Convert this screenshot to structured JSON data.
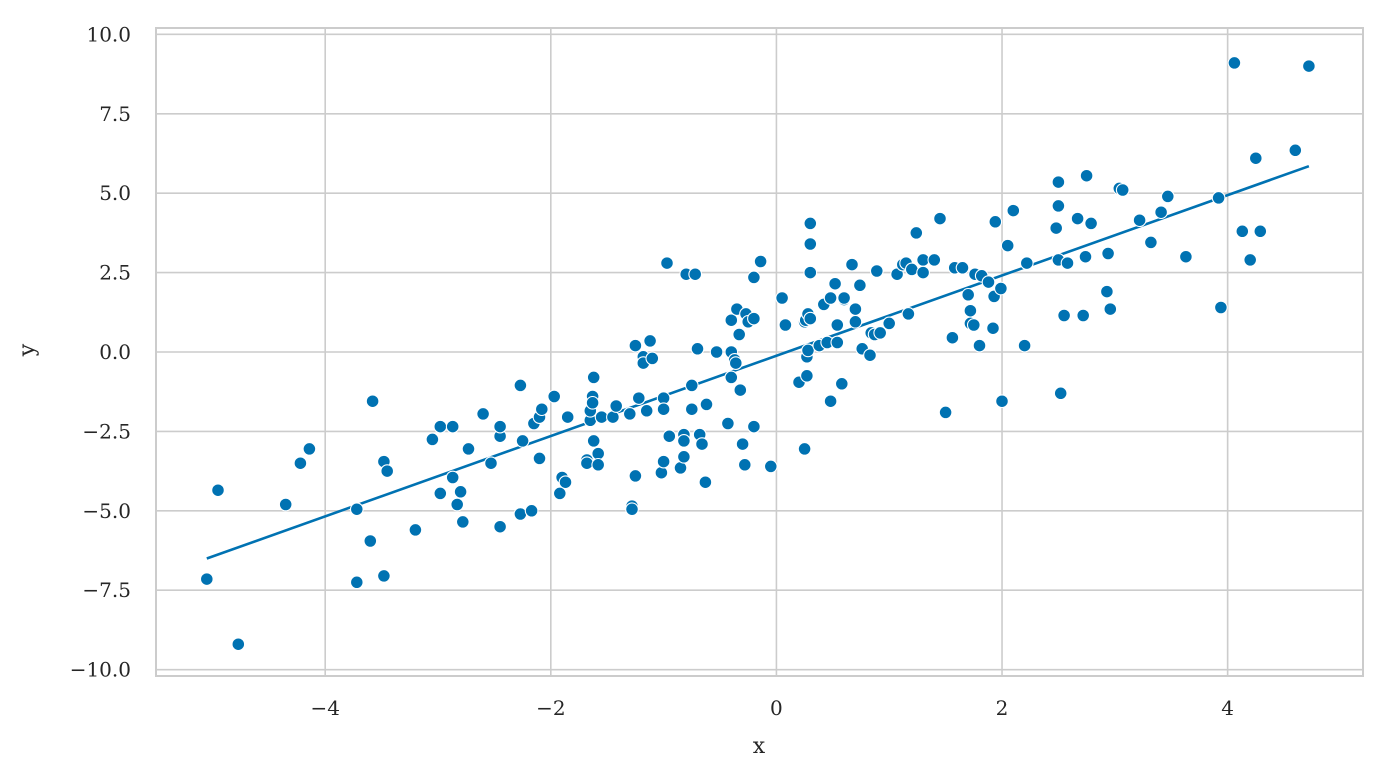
{
  "chart_data": {
    "type": "scatter",
    "title": "",
    "xlabel": "x",
    "ylabel": "y",
    "xlim": [
      -5.5,
      5.2
    ],
    "ylim": [
      -10.2,
      10.2
    ],
    "xticks": [
      -4,
      -2,
      0,
      2,
      4
    ],
    "yticks": [
      -10.0,
      -7.5,
      -5.0,
      -2.5,
      0.0,
      2.5,
      5.0,
      7.5,
      10.0
    ],
    "xtick_labels": [
      "−4",
      "−2",
      "0",
      "2",
      "4"
    ],
    "ytick_labels": [
      "−10.0",
      "−7.5",
      "−5.0",
      "−2.5",
      "0.0",
      "2.5",
      "5.0",
      "7.5",
      "10.0"
    ],
    "grid": true,
    "legend": "none",
    "colors": {
      "points": "#0072b2",
      "point_edge": "#ffffff",
      "fit_line": "#0072b2",
      "grid": "#cccccc",
      "spine": "#cccccc",
      "text": "#262626"
    },
    "series": [
      {
        "type": "scatter",
        "points": [
          [
            -5.05,
            -7.15
          ],
          [
            -4.95,
            -4.35
          ],
          [
            -4.77,
            -9.2
          ],
          [
            -4.35,
            -4.8
          ],
          [
            -4.22,
            -3.5
          ],
          [
            -4.14,
            -3.05
          ],
          [
            -3.72,
            -7.25
          ],
          [
            -3.72,
            -4.95
          ],
          [
            -3.6,
            -5.95
          ],
          [
            -3.58,
            -1.55
          ],
          [
            -3.48,
            -7.05
          ],
          [
            -3.48,
            -3.45
          ],
          [
            -3.45,
            -3.75
          ],
          [
            -3.2,
            -5.6
          ],
          [
            -3.05,
            -2.75
          ],
          [
            -2.98,
            -4.45
          ],
          [
            -2.98,
            -2.35
          ],
          [
            -2.87,
            -2.35
          ],
          [
            -2.87,
            -3.95
          ],
          [
            -2.83,
            -4.8
          ],
          [
            -2.8,
            -4.4
          ],
          [
            -2.78,
            -5.35
          ],
          [
            -2.73,
            -3.05
          ],
          [
            -2.6,
            -1.95
          ],
          [
            -2.53,
            -3.5
          ],
          [
            -2.45,
            -5.5
          ],
          [
            -2.45,
            -2.65
          ],
          [
            -2.45,
            -2.35
          ],
          [
            -2.27,
            -1.05
          ],
          [
            -2.27,
            -5.1
          ],
          [
            -2.25,
            -2.8
          ],
          [
            -2.17,
            -5.0
          ],
          [
            -2.15,
            -2.25
          ],
          [
            -2.1,
            -2.05
          ],
          [
            -2.1,
            -3.35
          ],
          [
            -2.08,
            -1.8
          ],
          [
            -1.97,
            -1.4
          ],
          [
            -1.92,
            -4.45
          ],
          [
            -1.9,
            -3.95
          ],
          [
            -1.87,
            -4.1
          ],
          [
            -1.85,
            -2.05
          ],
          [
            -1.68,
            -3.4
          ],
          [
            -1.68,
            -3.5
          ],
          [
            -1.65,
            -2.15
          ],
          [
            -1.65,
            -1.85
          ],
          [
            -1.63,
            -1.4
          ],
          [
            -1.63,
            -1.6
          ],
          [
            -1.62,
            -2.8
          ],
          [
            -1.62,
            -0.8
          ],
          [
            -1.58,
            -3.2
          ],
          [
            -1.58,
            -3.55
          ],
          [
            -1.55,
            -2.05
          ],
          [
            -1.45,
            -2.05
          ],
          [
            -1.42,
            -1.7
          ],
          [
            -1.3,
            -1.95
          ],
          [
            -1.28,
            -4.85
          ],
          [
            -1.28,
            -4.95
          ],
          [
            -1.25,
            0.2
          ],
          [
            -1.25,
            -3.9
          ],
          [
            -1.22,
            -1.45
          ],
          [
            -1.18,
            -0.15
          ],
          [
            -1.18,
            -0.35
          ],
          [
            -1.15,
            -1.85
          ],
          [
            -1.12,
            0.35
          ],
          [
            -1.1,
            -0.2
          ],
          [
            -1.02,
            -3.8
          ],
          [
            -1.0,
            -3.45
          ],
          [
            -1.0,
            -1.45
          ],
          [
            -1.0,
            -1.8
          ],
          [
            -0.97,
            2.8
          ],
          [
            -0.95,
            -2.65
          ],
          [
            -0.85,
            -3.65
          ],
          [
            -0.82,
            -3.3
          ],
          [
            -0.82,
            -2.6
          ],
          [
            -0.82,
            -2.8
          ],
          [
            -0.8,
            2.45
          ],
          [
            -0.75,
            -1.05
          ],
          [
            -0.75,
            -1.8
          ],
          [
            -0.72,
            2.45
          ],
          [
            -0.7,
            0.1
          ],
          [
            -0.68,
            -2.6
          ],
          [
            -0.66,
            -2.9
          ],
          [
            -0.63,
            -4.1
          ],
          [
            -0.62,
            -1.65
          ],
          [
            -0.53,
            0.0
          ],
          [
            -0.43,
            -2.25
          ],
          [
            -0.4,
            1.0
          ],
          [
            -0.4,
            0.0
          ],
          [
            -0.4,
            -0.8
          ],
          [
            -0.37,
            -0.25
          ],
          [
            -0.36,
            -0.35
          ],
          [
            -0.35,
            1.35
          ],
          [
            -0.33,
            0.55
          ],
          [
            -0.32,
            -1.2
          ],
          [
            -0.3,
            -2.9
          ],
          [
            -0.28,
            -3.55
          ],
          [
            -0.27,
            1.2
          ],
          [
            -0.25,
            0.95
          ],
          [
            -0.2,
            -2.35
          ],
          [
            -0.2,
            1.05
          ],
          [
            -0.2,
            2.35
          ],
          [
            -0.14,
            2.85
          ],
          [
            -0.05,
            -3.6
          ],
          [
            0.05,
            1.7
          ],
          [
            0.08,
            0.85
          ],
          [
            0.2,
            -0.95
          ],
          [
            0.25,
            -3.05
          ],
          [
            0.25,
            0.95
          ],
          [
            0.26,
            1.0
          ],
          [
            0.27,
            -0.15
          ],
          [
            0.27,
            -0.75
          ],
          [
            0.28,
            0.05
          ],
          [
            0.28,
            1.2
          ],
          [
            0.3,
            1.05
          ],
          [
            0.3,
            2.5
          ],
          [
            0.3,
            3.4
          ],
          [
            0.3,
            4.05
          ],
          [
            0.38,
            0.2
          ],
          [
            0.42,
            1.5
          ],
          [
            0.45,
            0.3
          ],
          [
            0.48,
            -1.55
          ],
          [
            0.48,
            1.7
          ],
          [
            0.52,
            2.15
          ],
          [
            0.54,
            0.3
          ],
          [
            0.54,
            0.85
          ],
          [
            0.58,
            -1.0
          ],
          [
            0.6,
            1.65
          ],
          [
            0.6,
            1.7
          ],
          [
            0.67,
            2.75
          ],
          [
            0.7,
            1.35
          ],
          [
            0.7,
            0.95
          ],
          [
            0.74,
            2.1
          ],
          [
            0.76,
            0.1
          ],
          [
            0.83,
            -0.1
          ],
          [
            0.84,
            0.6
          ],
          [
            0.87,
            0.55
          ],
          [
            0.89,
            2.55
          ],
          [
            0.92,
            0.6
          ],
          [
            1.0,
            0.9
          ],
          [
            1.07,
            2.45
          ],
          [
            1.12,
            2.75
          ],
          [
            1.15,
            2.8
          ],
          [
            1.17,
            1.2
          ],
          [
            1.2,
            2.6
          ],
          [
            1.24,
            3.75
          ],
          [
            1.3,
            2.9
          ],
          [
            1.3,
            2.5
          ],
          [
            1.4,
            2.9
          ],
          [
            1.45,
            4.2
          ],
          [
            1.5,
            -1.9
          ],
          [
            1.56,
            0.45
          ],
          [
            1.58,
            2.65
          ],
          [
            1.65,
            2.65
          ],
          [
            1.7,
            1.8
          ],
          [
            1.72,
            0.9
          ],
          [
            1.72,
            1.3
          ],
          [
            1.75,
            0.85
          ],
          [
            1.76,
            2.45
          ],
          [
            1.8,
            0.2
          ],
          [
            1.82,
            2.4
          ],
          [
            1.88,
            2.2
          ],
          [
            1.92,
            0.75
          ],
          [
            1.93,
            1.75
          ],
          [
            1.94,
            4.1
          ],
          [
            1.99,
            2.0
          ],
          [
            2.0,
            -1.55
          ],
          [
            2.05,
            3.35
          ],
          [
            2.1,
            4.45
          ],
          [
            2.2,
            0.2
          ],
          [
            2.22,
            2.8
          ],
          [
            2.48,
            3.9
          ],
          [
            2.5,
            4.6
          ],
          [
            2.5,
            5.35
          ],
          [
            2.5,
            2.9
          ],
          [
            2.52,
            -1.3
          ],
          [
            2.55,
            1.15
          ],
          [
            2.58,
            2.8
          ],
          [
            2.67,
            4.2
          ],
          [
            2.72,
            1.15
          ],
          [
            2.74,
            3.0
          ],
          [
            2.75,
            5.55
          ],
          [
            2.79,
            4.05
          ],
          [
            2.93,
            1.9
          ],
          [
            2.94,
            3.1
          ],
          [
            2.96,
            1.35
          ],
          [
            3.04,
            5.15
          ],
          [
            3.07,
            5.1
          ],
          [
            3.22,
            4.15
          ],
          [
            3.32,
            3.45
          ],
          [
            3.41,
            4.4
          ],
          [
            3.47,
            4.9
          ],
          [
            3.63,
            3.0
          ],
          [
            3.92,
            4.85
          ],
          [
            3.94,
            1.4
          ],
          [
            4.06,
            9.1
          ],
          [
            4.13,
            3.8
          ],
          [
            4.2,
            2.9
          ],
          [
            4.25,
            6.1
          ],
          [
            4.29,
            3.8
          ],
          [
            4.6,
            6.35
          ],
          [
            4.72,
            9.0
          ]
        ]
      },
      {
        "type": "line",
        "points": [
          [
            -5.05,
            -6.5
          ],
          [
            4.72,
            5.85
          ]
        ]
      }
    ]
  }
}
